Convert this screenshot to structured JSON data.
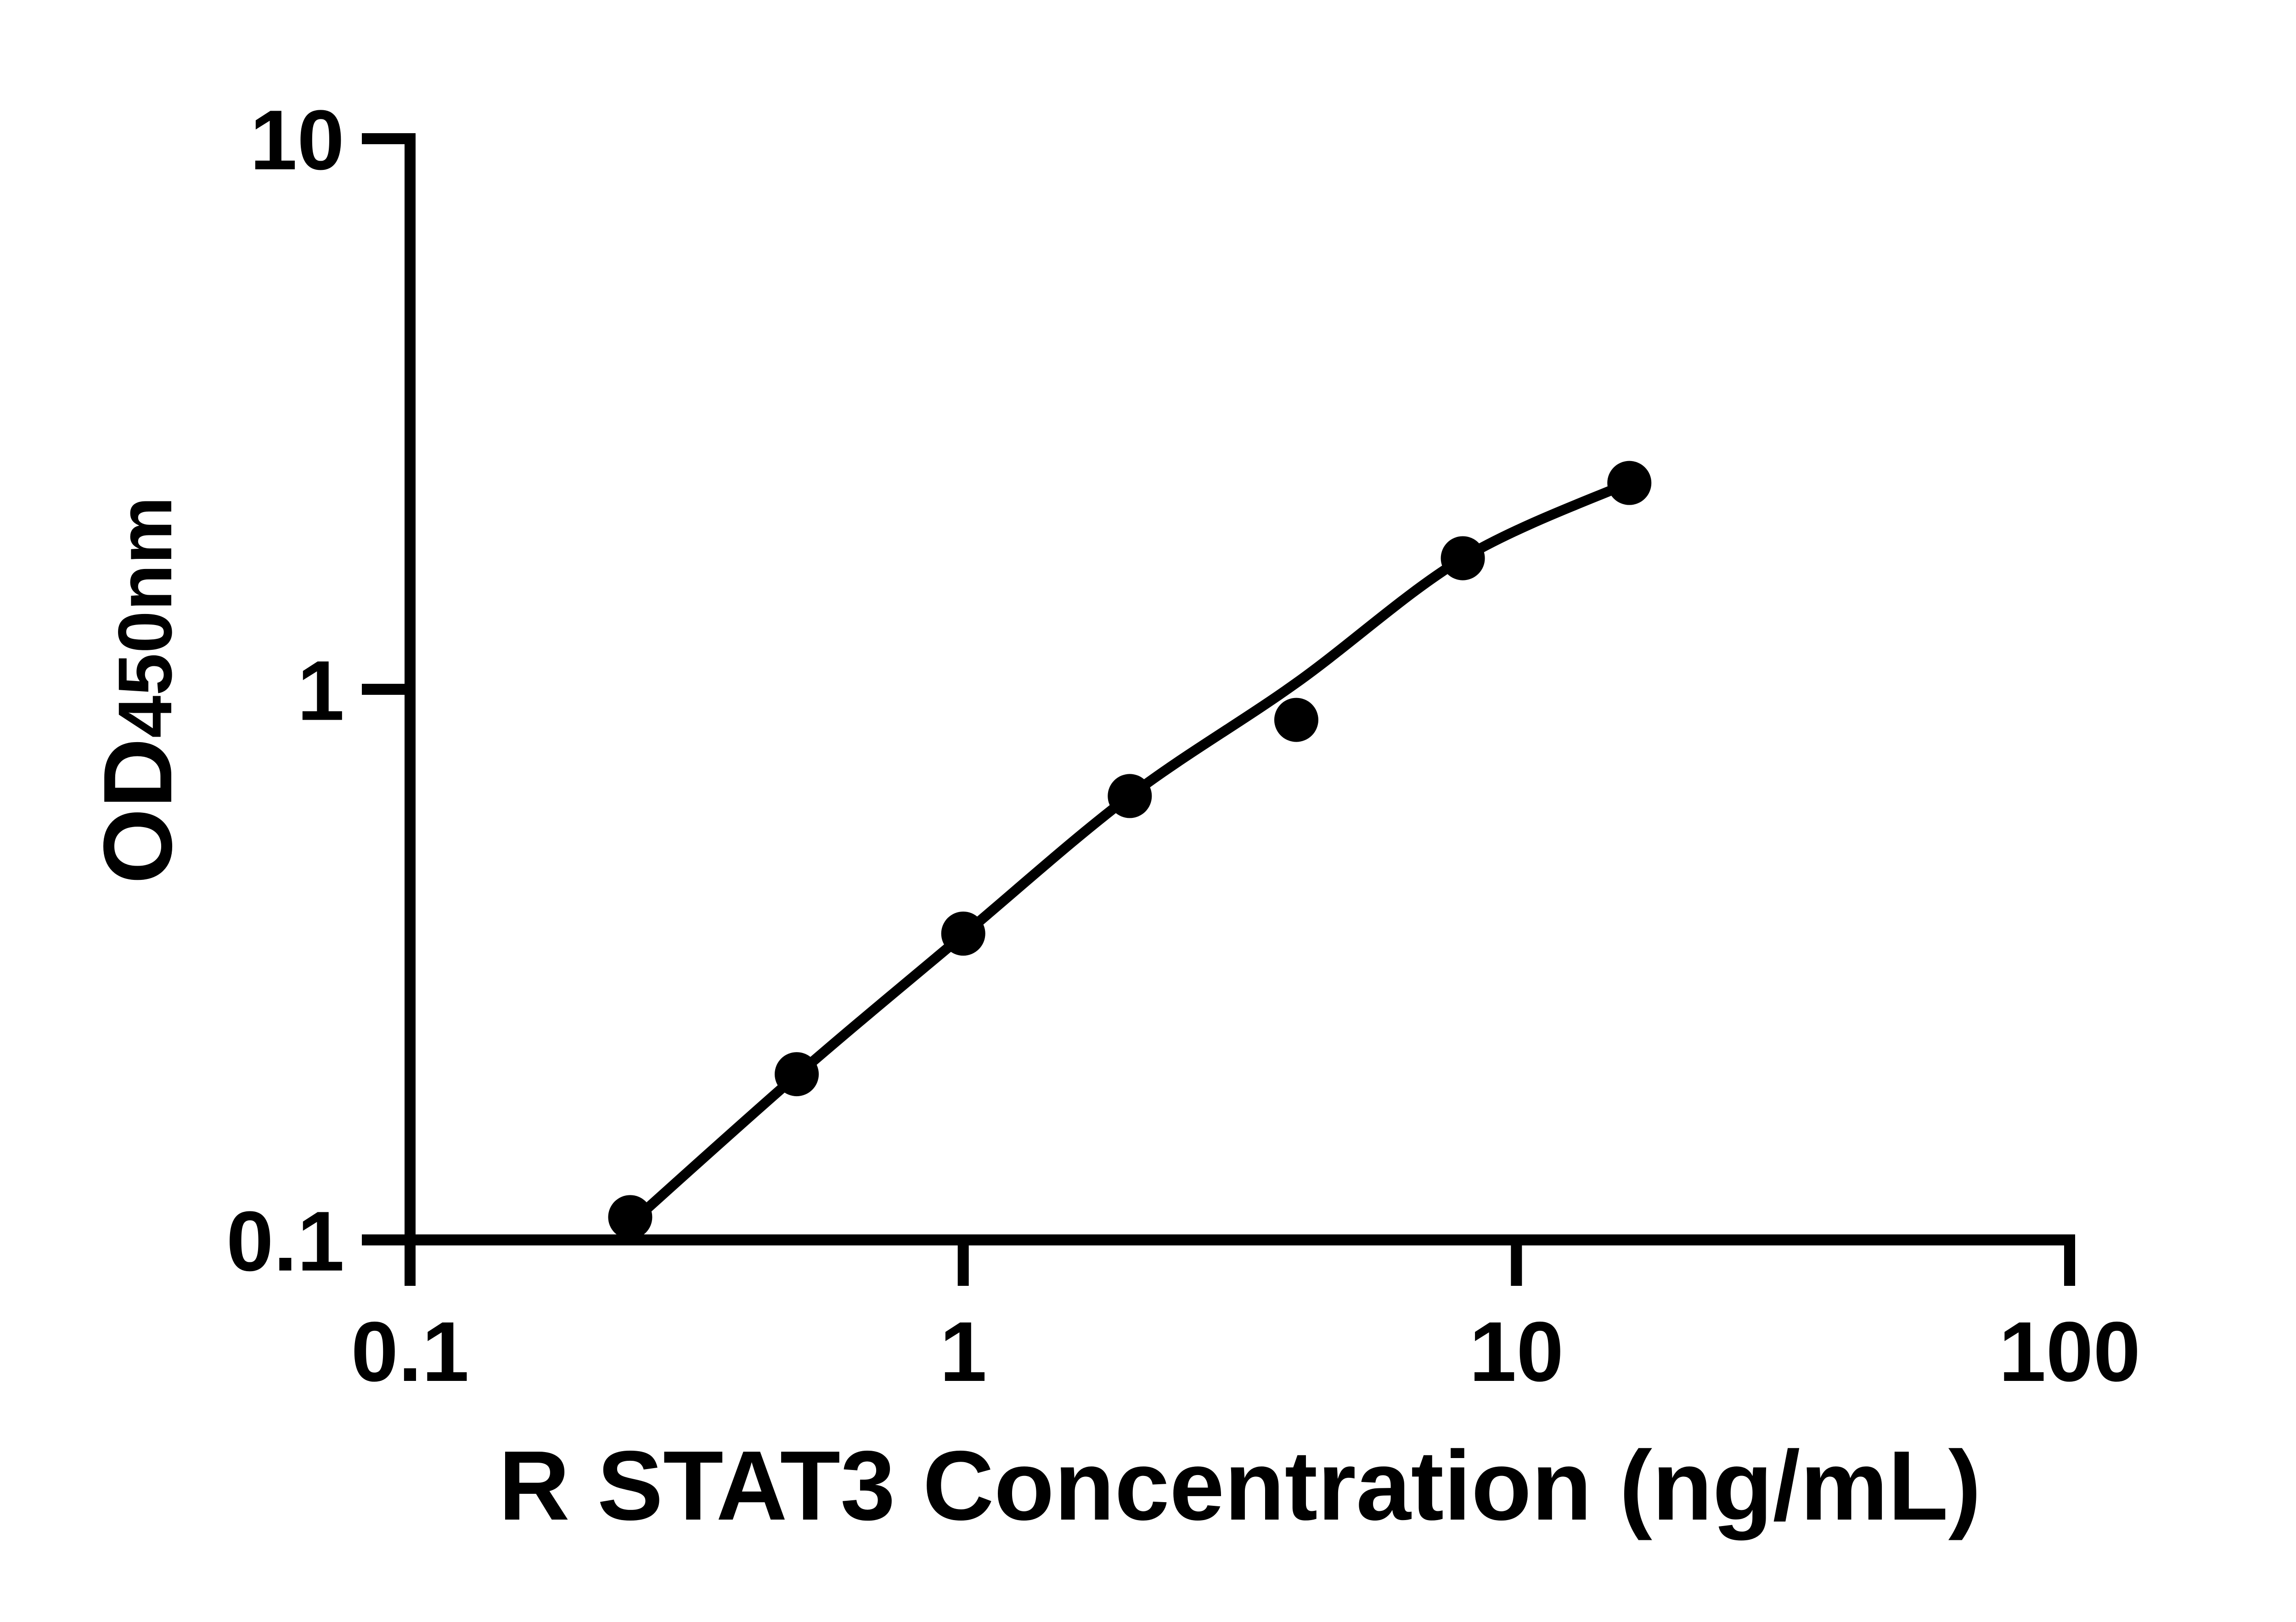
{
  "figure": {
    "background_color": "#ffffff",
    "ink_color": "#000000"
  },
  "chart_data": {
    "type": "scatter",
    "title": "",
    "xlabel": "R STAT3 Concentration (ng/mL)",
    "ylabel_main": "OD",
    "ylabel_sub": "450nm",
    "grid": false,
    "legend_position": "none",
    "x_axis": {
      "scale": "log10",
      "min": 0.1,
      "max": 100,
      "ticks": [
        {
          "value": 0.1,
          "label": "0.1"
        },
        {
          "value": 1,
          "label": "1"
        },
        {
          "value": 10,
          "label": "10"
        },
        {
          "value": 100,
          "label": "100"
        }
      ]
    },
    "y_axis": {
      "scale": "log10",
      "min": 0.1,
      "max": 10,
      "ticks": [
        {
          "value": 10,
          "label": "10"
        },
        {
          "value": 1,
          "label": "1"
        },
        {
          "value": 0.1,
          "label": "0.1"
        }
      ]
    },
    "series": [
      {
        "name": "standard-points",
        "marker": "filled-circle",
        "color": "#000000",
        "points": [
          {
            "x": 0.25,
            "y": 0.11
          },
          {
            "x": 0.5,
            "y": 0.2
          },
          {
            "x": 1,
            "y": 0.36
          },
          {
            "x": 2,
            "y": 0.64
          },
          {
            "x": 4,
            "y": 0.88
          },
          {
            "x": 8,
            "y": 1.73
          },
          {
            "x": 16,
            "y": 2.37
          }
        ]
      }
    ],
    "fit_curve": {
      "name": "standard-curve-fit",
      "color": "#000000",
      "points": [
        [
          0.25,
          0.107
        ],
        [
          0.5,
          0.199
        ],
        [
          1,
          0.358
        ],
        [
          2,
          0.64
        ],
        [
          4,
          1.027
        ],
        [
          8,
          1.729
        ],
        [
          16,
          2.373
        ]
      ]
    }
  }
}
